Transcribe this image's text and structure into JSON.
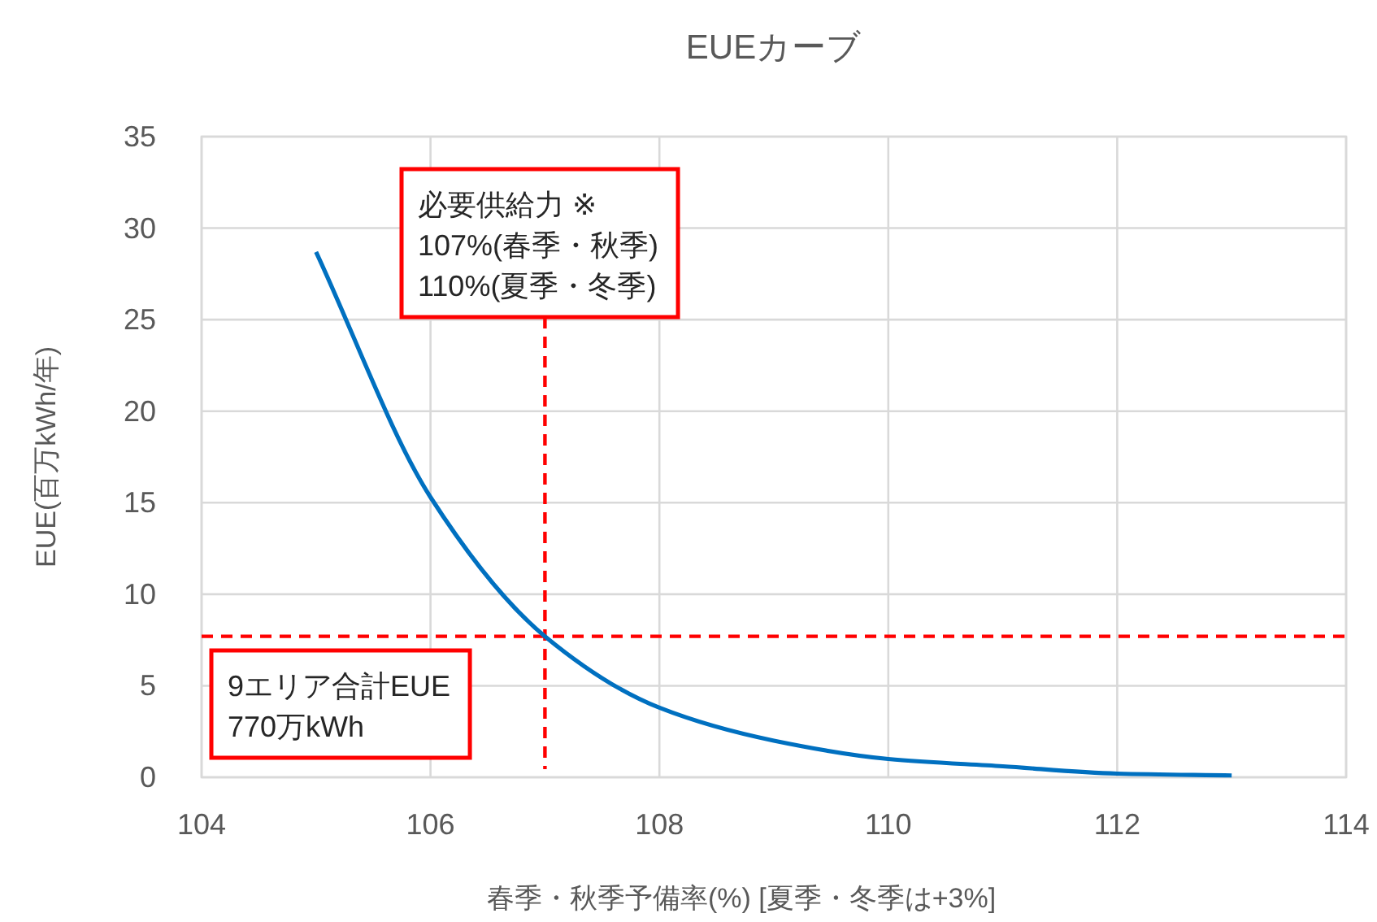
{
  "chart_data": {
    "type": "line",
    "title": "EUEカーブ",
    "xlabel": "春季・秋季予備率(%)  [夏季・冬季は+3%]",
    "ylabel": "EUE(百万kWh/年)",
    "x": [
      105,
      106,
      107,
      108,
      109,
      110,
      111,
      112,
      113
    ],
    "series": [
      {
        "color": "#0070c0",
        "values": [
          28.7,
          15.3,
          7.7,
          3.8,
          2.0,
          1.0,
          0.6,
          0.2,
          0.1
        ]
      }
    ],
    "xlim": [
      104,
      114
    ],
    "xticks": [
      104,
      106,
      108,
      110,
      112,
      114
    ],
    "ylim": [
      0,
      35
    ],
    "yticks": [
      0,
      5,
      10,
      15,
      20,
      25,
      30,
      35
    ],
    "grid": true,
    "marker": "none",
    "line_style": "solid",
    "ref_lines": [
      {
        "axis": "x",
        "value": 107,
        "label": "必要供給力 ※\n107%(春季・秋季)\n110%(夏季・冬季)",
        "color": "#ff0000",
        "line_style": "dashed"
      },
      {
        "axis": "y",
        "value": 7.7,
        "label": "9エリア合計EUE\n770万kWh",
        "color": "#ff0000",
        "line_style": "dashed"
      }
    ]
  }
}
